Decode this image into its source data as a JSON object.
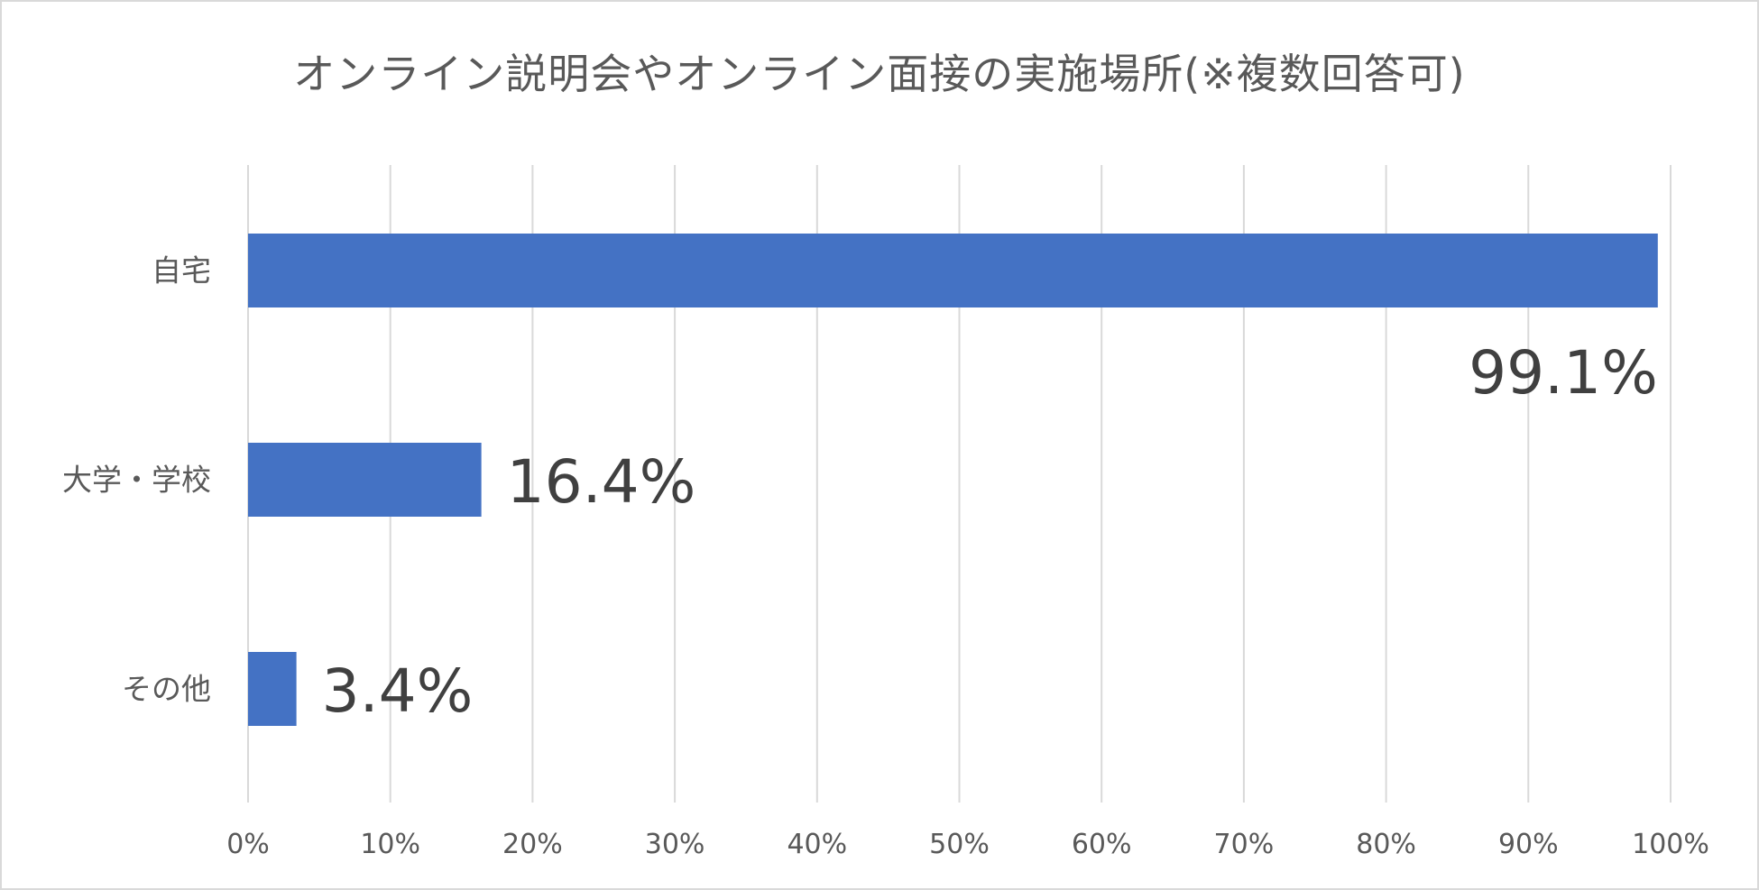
{
  "chart_data": {
    "type": "bar",
    "orientation": "horizontal",
    "title": "オンライン説明会やオンライン面接の実施場所(※複数回答可)",
    "categories": [
      "自宅",
      "大学・学校",
      "その他"
    ],
    "values": [
      99.1,
      16.4,
      3.4
    ],
    "value_labels": [
      "99.1%",
      "16.4%",
      "3.4%"
    ],
    "x_ticks": [
      "0%",
      "10%",
      "20%",
      "30%",
      "40%",
      "50%",
      "60%",
      "70%",
      "80%",
      "90%",
      "100%"
    ],
    "xlim": [
      0,
      100
    ],
    "grid": true,
    "legend": "none",
    "xlabel": "",
    "ylabel": ""
  },
  "colors": {
    "bar": "#4472c4",
    "grid": "#d9d9d9",
    "axis_text": "#595959",
    "value_text": "#404040"
  }
}
